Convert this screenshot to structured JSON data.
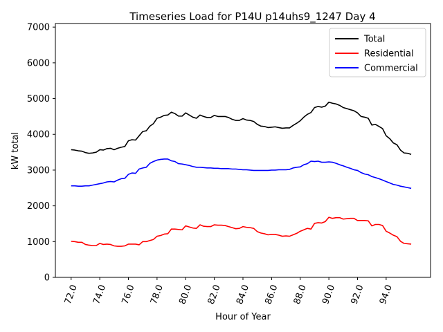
{
  "chart_data": {
    "type": "line",
    "title": "Timeseries Load for P14U p14uhs9_1247  Day 4",
    "xlabel": "Hour of Year",
    "ylabel": "kW total",
    "xlim": [
      70.9,
      97.1
    ],
    "ylim": [
      0,
      7100
    ],
    "xticks": [
      "72.0",
      "74.0",
      "76.0",
      "78.0",
      "80.0",
      "82.0",
      "84.0",
      "86.0",
      "88.0",
      "90.0",
      "92.0",
      "94.0"
    ],
    "xtick_values": [
      72,
      74,
      76,
      78,
      80,
      82,
      84,
      86,
      88,
      90,
      92,
      94
    ],
    "yticks": [
      "0",
      "1000",
      "2000",
      "3000",
      "4000",
      "5000",
      "6000",
      "7000"
    ],
    "ytick_values": [
      0,
      1000,
      2000,
      3000,
      4000,
      5000,
      6000,
      7000
    ],
    "legend_position": "top-right",
    "x": [
      72.0,
      72.25,
      72.5,
      72.75,
      73.0,
      73.25,
      73.5,
      73.75,
      74.0,
      74.25,
      74.5,
      74.75,
      75.0,
      75.25,
      75.5,
      75.75,
      76.0,
      76.25,
      76.5,
      76.75,
      77.0,
      77.25,
      77.5,
      77.75,
      78.0,
      78.25,
      78.5,
      78.75,
      79.0,
      79.25,
      79.5,
      79.75,
      80.0,
      80.25,
      80.5,
      80.75,
      81.0,
      81.25,
      81.5,
      81.75,
      82.0,
      82.25,
      82.5,
      82.75,
      83.0,
      83.25,
      83.5,
      83.75,
      84.0,
      84.25,
      84.5,
      84.75,
      85.0,
      85.25,
      85.5,
      85.75,
      86.0,
      86.25,
      86.5,
      86.75,
      87.0,
      87.25,
      87.5,
      87.75,
      88.0,
      88.25,
      88.5,
      88.75,
      89.0,
      89.25,
      89.5,
      89.75,
      90.0,
      90.25,
      90.5,
      90.75,
      91.0,
      91.25,
      91.5,
      91.75,
      92.0,
      92.25,
      92.5,
      92.75,
      93.0,
      93.25,
      93.5,
      93.75,
      94.0,
      94.25,
      94.5,
      94.75,
      95.0,
      95.25,
      95.5,
      95.75
    ],
    "series": [
      {
        "name": "Total",
        "color": "#000000",
        "values": [
          3570,
          3560,
          3540,
          3530,
          3490,
          3470,
          3480,
          3500,
          3570,
          3560,
          3600,
          3610,
          3570,
          3610,
          3640,
          3660,
          3820,
          3850,
          3840,
          3960,
          4080,
          4100,
          4230,
          4300,
          4450,
          4480,
          4530,
          4540,
          4620,
          4580,
          4510,
          4510,
          4600,
          4540,
          4480,
          4450,
          4540,
          4500,
          4470,
          4470,
          4530,
          4500,
          4500,
          4500,
          4470,
          4420,
          4390,
          4390,
          4440,
          4400,
          4390,
          4360,
          4280,
          4230,
          4220,
          4190,
          4200,
          4210,
          4190,
          4170,
          4180,
          4180,
          4250,
          4310,
          4380,
          4480,
          4560,
          4610,
          4750,
          4780,
          4760,
          4790,
          4900,
          4870,
          4850,
          4810,
          4750,
          4720,
          4690,
          4660,
          4600,
          4500,
          4480,
          4450,
          4260,
          4280,
          4220,
          4160,
          3960,
          3880,
          3760,
          3710,
          3560,
          3480,
          3470,
          3440
        ]
      },
      {
        "name": "Residential",
        "color": "#ff0000",
        "values": [
          1010,
          1000,
          980,
          980,
          920,
          900,
          890,
          890,
          950,
          920,
          930,
          920,
          880,
          870,
          870,
          880,
          930,
          930,
          930,
          910,
          1000,
          1000,
          1030,
          1060,
          1150,
          1170,
          1210,
          1220,
          1350,
          1350,
          1340,
          1330,
          1440,
          1410,
          1380,
          1370,
          1470,
          1430,
          1420,
          1420,
          1470,
          1460,
          1460,
          1450,
          1420,
          1390,
          1360,
          1370,
          1420,
          1400,
          1390,
          1370,
          1280,
          1240,
          1220,
          1190,
          1200,
          1200,
          1180,
          1150,
          1160,
          1150,
          1190,
          1230,
          1290,
          1330,
          1370,
          1350,
          1510,
          1530,
          1520,
          1560,
          1680,
          1650,
          1670,
          1670,
          1630,
          1640,
          1650,
          1650,
          1590,
          1590,
          1590,
          1580,
          1440,
          1480,
          1480,
          1450,
          1290,
          1240,
          1180,
          1140,
          1010,
          950,
          940,
          930
        ]
      },
      {
        "name": "Commercial",
        "color": "#0000ff",
        "values": [
          2560,
          2560,
          2550,
          2550,
          2560,
          2560,
          2580,
          2600,
          2620,
          2640,
          2670,
          2680,
          2670,
          2720,
          2760,
          2770,
          2880,
          2920,
          2910,
          3030,
          3060,
          3080,
          3190,
          3240,
          3280,
          3300,
          3310,
          3310,
          3260,
          3240,
          3180,
          3170,
          3150,
          3130,
          3100,
          3080,
          3080,
          3070,
          3060,
          3060,
          3050,
          3050,
          3040,
          3040,
          3040,
          3030,
          3030,
          3020,
          3010,
          3010,
          3000,
          2990,
          2990,
          2990,
          2990,
          2990,
          3000,
          3000,
          3010,
          3010,
          3010,
          3020,
          3060,
          3080,
          3090,
          3150,
          3180,
          3250,
          3240,
          3250,
          3220,
          3220,
          3230,
          3220,
          3190,
          3150,
          3120,
          3080,
          3050,
          3010,
          2990,
          2930,
          2890,
          2870,
          2820,
          2790,
          2760,
          2720,
          2680,
          2640,
          2600,
          2580,
          2550,
          2530,
          2510,
          2490
        ]
      }
    ]
  }
}
